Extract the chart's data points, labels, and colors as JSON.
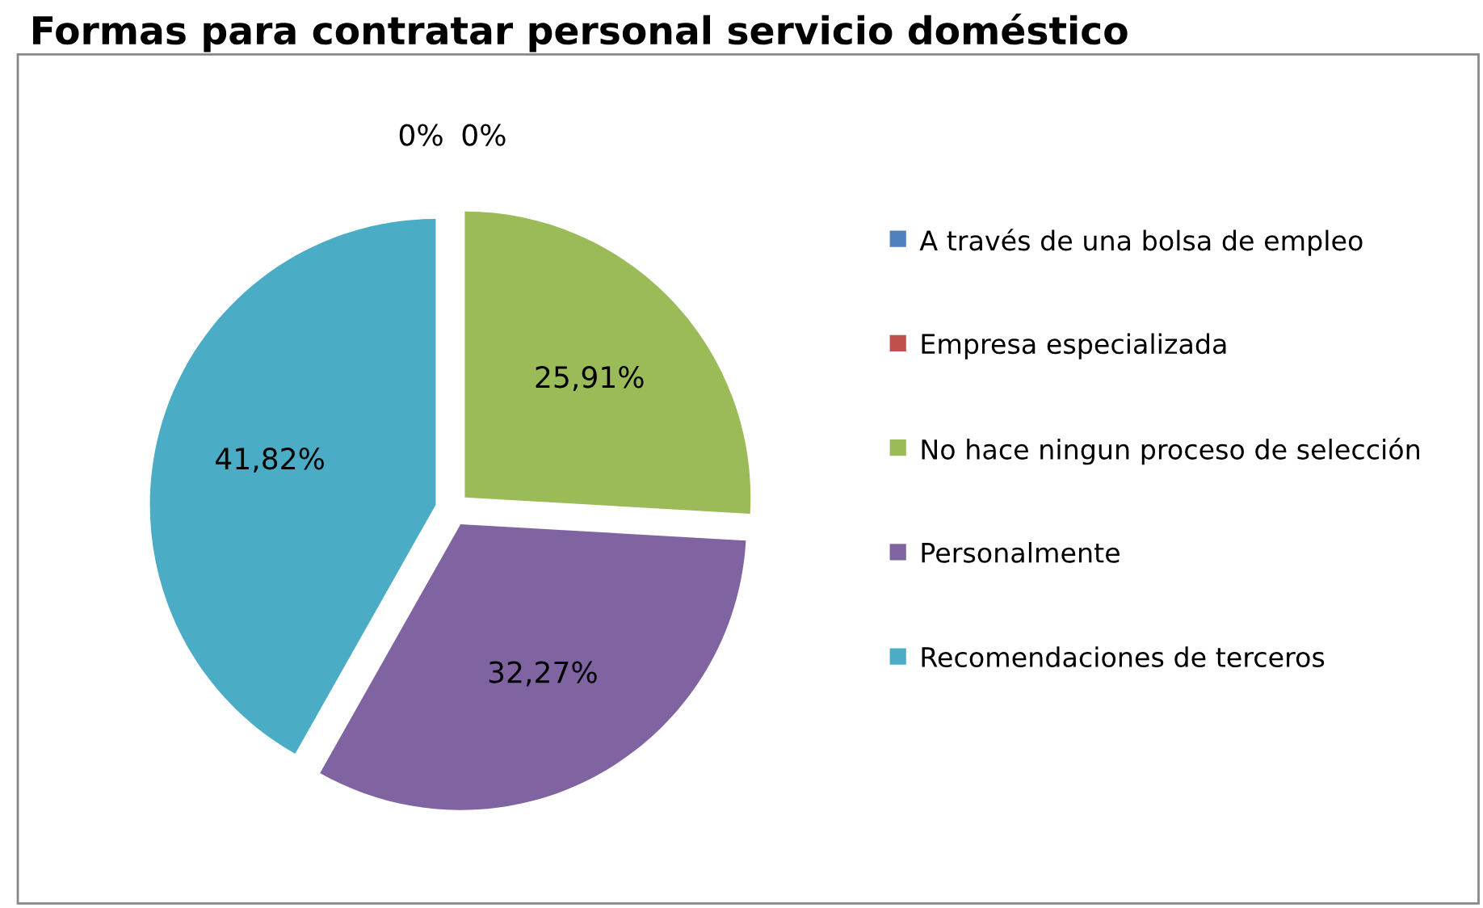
{
  "chart_data": {
    "type": "pie",
    "title": "Formas para contratar personal servicio doméstico",
    "categories": [
      "A través de una bolsa de empleo",
      "Empresa especializada",
      "No hace ningun proceso de selección",
      "Personalmente",
      "Recomendaciones de terceros"
    ],
    "values": [
      0,
      0,
      25.91,
      32.27,
      41.82
    ],
    "value_labels": [
      "0%",
      "0%",
      "25,91%",
      "32,27%",
      "41,82%"
    ],
    "colors": [
      "#4f81bd",
      "#c0504d",
      "#9bbb59",
      "#8064a2",
      "#4bacc6"
    ],
    "legend": "right"
  }
}
